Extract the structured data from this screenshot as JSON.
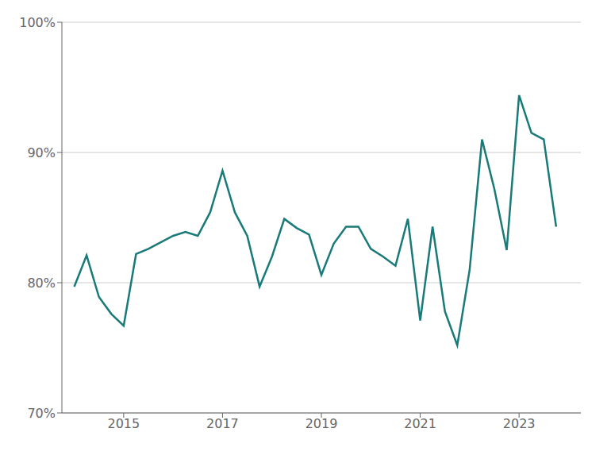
{
  "chart_data": {
    "type": "line",
    "x": [
      2014.0,
      2014.25,
      2014.5,
      2014.75,
      2015.0,
      2015.25,
      2015.5,
      2015.75,
      2016.0,
      2016.25,
      2016.5,
      2016.75,
      2017.0,
      2017.25,
      2017.5,
      2017.75,
      2018.0,
      2018.25,
      2018.5,
      2018.75,
      2019.0,
      2019.25,
      2019.5,
      2019.75,
      2020.0,
      2020.25,
      2020.5,
      2020.75,
      2021.0,
      2021.25,
      2021.5,
      2021.75,
      2022.0,
      2022.25,
      2022.5,
      2022.75,
      2023.0,
      2023.25,
      2023.5,
      2023.75
    ],
    "values": [
      0.797,
      0.821,
      0.789,
      0.776,
      0.767,
      0.822,
      0.826,
      0.831,
      0.836,
      0.839,
      0.836,
      0.854,
      0.886,
      0.854,
      0.836,
      0.797,
      0.82,
      0.849,
      0.842,
      0.837,
      0.806,
      0.83,
      0.843,
      0.843,
      0.826,
      0.82,
      0.813,
      0.849,
      0.771,
      0.843,
      0.778,
      0.752,
      0.81,
      0.91,
      0.872,
      0.825,
      0.944,
      0.915,
      0.91,
      0.843
    ],
    "color": "#1a7a7a",
    "xlim": [
      2013.75,
      2024.25
    ],
    "xticks": [
      2015,
      2017,
      2019,
      2021,
      2023
    ],
    "ylim": [
      0.7,
      1.0
    ],
    "yticks": [
      {
        "value": 0.7,
        "label": "70%"
      },
      {
        "value": 0.8,
        "label": "80%"
      },
      {
        "value": 0.9,
        "label": "90%"
      },
      {
        "value": 1.0,
        "label": "100%"
      }
    ],
    "grid": "y"
  }
}
